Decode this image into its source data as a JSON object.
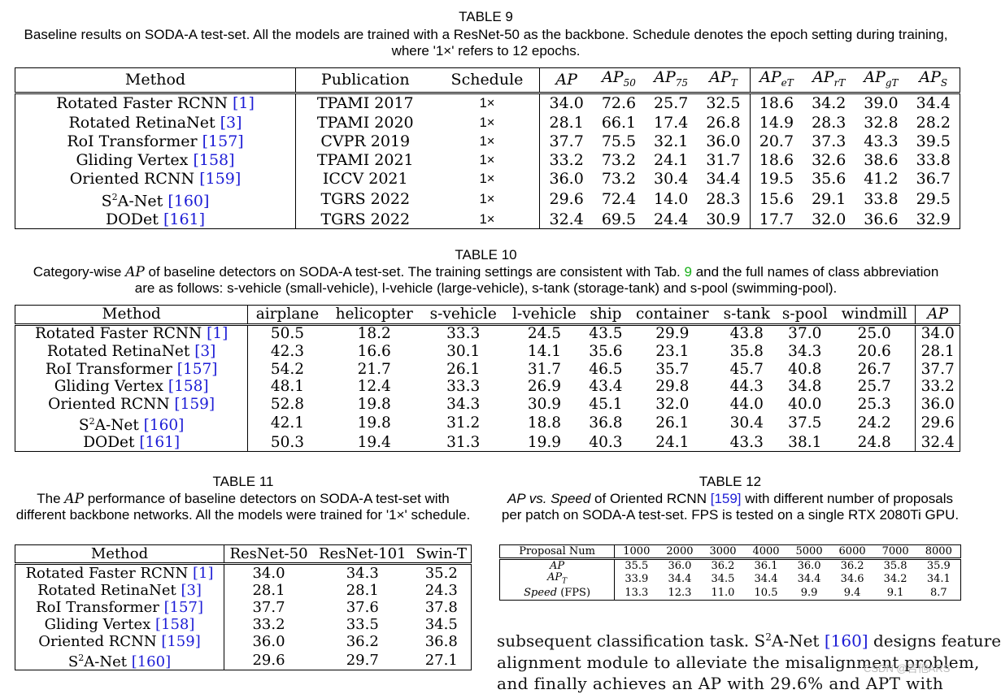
{
  "t9": {
    "label": "TABLE 9",
    "caption": "Baseline results on SODA-A test-set. All the models are trained with a ResNet-50 as the backbone. Schedule denotes the epoch setting during training, where '1×' refers to 12 epochs.",
    "headers": [
      "Method",
      "Publication",
      "Schedule",
      "AP",
      "AP50",
      "AP75",
      "APT",
      "APeT",
      "AprT",
      "APgT",
      "APS"
    ],
    "rows": [
      {
        "method": "Rotated Faster RCNN",
        "ref": "[1]",
        "pub": "TPAMI 2017",
        "sched": "1×",
        "vals": [
          "34.0",
          "72.6",
          "25.7",
          "32.5",
          "18.6",
          "34.2",
          "39.0",
          "34.4"
        ]
      },
      {
        "method": "Rotated RetinaNet",
        "ref": "[3]",
        "pub": "TPAMI 2020",
        "sched": "1×",
        "vals": [
          "28.1",
          "66.1",
          "17.4",
          "26.8",
          "14.9",
          "28.3",
          "32.8",
          "28.2"
        ]
      },
      {
        "method": "RoI Transformer",
        "ref": "[157]",
        "pub": "CVPR 2019",
        "sched": "1×",
        "vals": [
          "37.7",
          "75.5",
          "32.1",
          "36.0",
          "20.7",
          "37.3",
          "43.3",
          "39.5"
        ]
      },
      {
        "method": "Gliding Vertex",
        "ref": "[158]",
        "pub": "TPAMI 2021",
        "sched": "1×",
        "vals": [
          "33.2",
          "73.2",
          "24.1",
          "31.7",
          "18.6",
          "32.6",
          "38.6",
          "33.8"
        ]
      },
      {
        "method": "Oriented RCNN",
        "ref": "[159]",
        "pub": "ICCV 2021",
        "sched": "1×",
        "vals": [
          "36.0",
          "73.2",
          "30.4",
          "34.4",
          "19.5",
          "35.6",
          "41.2",
          "36.7"
        ]
      },
      {
        "method": "S2A-Net",
        "ref": "[160]",
        "pub": "TGRS 2022",
        "sched": "1×",
        "vals": [
          "29.6",
          "72.4",
          "14.0",
          "28.3",
          "15.6",
          "29.1",
          "33.8",
          "29.5"
        ]
      },
      {
        "method": "DODet",
        "ref": "[161]",
        "pub": "TGRS 2022",
        "sched": "1×",
        "vals": [
          "32.4",
          "69.5",
          "24.4",
          "30.9",
          "17.7",
          "32.0",
          "36.6",
          "32.9"
        ]
      }
    ]
  },
  "t10": {
    "label": "TABLE 10",
    "caption_a": "Category-wise",
    "caption_ap": "AP",
    "caption_b": "of baseline detectors on SODA-A test-set. The training settings are consistent with Tab.",
    "caption_tabref": "9",
    "caption_c": "and the full names of class abbreviation are as follows: s-vehicle (small-vehicle), l-vehicle (large-vehicle), s-tank (storage-tank) and s-pool (swimming-pool).",
    "headers": [
      "Method",
      "airplane",
      "helicopter",
      "s-vehicle",
      "l-vehicle",
      "ship",
      "container",
      "s-tank",
      "s-pool",
      "windmill",
      "AP"
    ],
    "rows": [
      {
        "method": "Rotated Faster RCNN",
        "ref": "[1]",
        "vals": [
          "50.5",
          "18.2",
          "33.3",
          "24.5",
          "43.5",
          "29.9",
          "43.8",
          "37.0",
          "25.0",
          "34.0"
        ]
      },
      {
        "method": "Rotated RetinaNet",
        "ref": "[3]",
        "vals": [
          "42.3",
          "16.6",
          "30.1",
          "14.1",
          "35.6",
          "23.1",
          "35.8",
          "34.3",
          "20.6",
          "28.1"
        ]
      },
      {
        "method": "RoI Transformer",
        "ref": "[157]",
        "vals": [
          "54.2",
          "21.7",
          "26.1",
          "31.7",
          "46.5",
          "35.7",
          "45.7",
          "40.8",
          "26.7",
          "37.7"
        ]
      },
      {
        "method": "Gliding Vertex",
        "ref": "[158]",
        "vals": [
          "48.1",
          "12.4",
          "33.3",
          "26.9",
          "43.4",
          "29.8",
          "44.3",
          "34.8",
          "25.7",
          "33.2"
        ]
      },
      {
        "method": "Oriented RCNN",
        "ref": "[159]",
        "vals": [
          "52.8",
          "19.8",
          "34.3",
          "30.9",
          "45.1",
          "32.0",
          "44.0",
          "40.0",
          "25.3",
          "36.0"
        ]
      },
      {
        "method": "S2A-Net",
        "ref": "[160]",
        "vals": [
          "42.1",
          "19.8",
          "31.2",
          "18.8",
          "36.8",
          "26.1",
          "30.4",
          "37.5",
          "24.2",
          "29.6"
        ]
      },
      {
        "method": "DODet",
        "ref": "[161]",
        "vals": [
          "50.3",
          "19.4",
          "31.3",
          "19.9",
          "40.3",
          "24.1",
          "43.3",
          "38.1",
          "24.8",
          "32.4"
        ]
      }
    ]
  },
  "t11": {
    "label": "TABLE 11",
    "caption_a": "The",
    "caption_ap": "AP",
    "caption_b": "performance of baseline detectors on SODA-A test-set with different backbone networks. All the models were trained for '1×' schedule.",
    "headers": [
      "Method",
      "ResNet-50",
      "ResNet-101",
      "Swin-T"
    ],
    "rows": [
      {
        "method": "Rotated Faster RCNN",
        "ref": "[1]",
        "vals": [
          "34.0",
          "34.3",
          "35.2"
        ]
      },
      {
        "method": "Rotated RetinaNet",
        "ref": "[3]",
        "vals": [
          "28.1",
          "28.1",
          "24.3"
        ]
      },
      {
        "method": "RoI Transformer",
        "ref": "[157]",
        "vals": [
          "37.7",
          "37.6",
          "37.8"
        ]
      },
      {
        "method": "Gliding Vertex",
        "ref": "[158]",
        "vals": [
          "33.2",
          "33.5",
          "34.5"
        ]
      },
      {
        "method": "Oriented RCNN",
        "ref": "[159]",
        "vals": [
          "36.0",
          "36.2",
          "36.8"
        ]
      },
      {
        "method": "S2A-Net",
        "ref": "[160]",
        "vals": [
          "29.6",
          "29.7",
          "27.1"
        ]
      }
    ]
  },
  "t12": {
    "label": "TABLE 12",
    "caption_a": "AP vs. Speed",
    "caption_b": "of Oriented RCNN",
    "caption_ref": "[159]",
    "caption_c": "with different number of proposals per patch on SODA-A test-set. FPS is tested on a single RTX 2080Ti GPU.",
    "header_label": "Proposal Num",
    "proposals": [
      "1000",
      "2000",
      "3000",
      "4000",
      "5000",
      "6000",
      "7000",
      "8000"
    ],
    "rows": [
      {
        "label": "AP",
        "vals": [
          "35.5",
          "36.0",
          "36.2",
          "36.1",
          "36.0",
          "36.2",
          "35.8",
          "35.9"
        ]
      },
      {
        "label": "APT",
        "vals": [
          "33.9",
          "34.4",
          "34.5",
          "34.4",
          "34.4",
          "34.6",
          "34.2",
          "34.1"
        ]
      },
      {
        "label": "Speed (FPS)",
        "vals": [
          "13.3",
          "12.3",
          "11.0",
          "10.5",
          "9.9",
          "9.4",
          "9.1",
          "8.7"
        ]
      }
    ]
  },
  "body": {
    "line1_a": "subsequent classification task. S",
    "line1_sup": "2",
    "line1_b": "A-Net",
    "line1_ref": "[160]",
    "line1_c": "designs feature",
    "line2": "alignment module to alleviate the misalignment problem,",
    "line3": "and finally achieves an AP with 29.6% and APT with"
  },
  "watermark": "CSDN @吉他ARS"
}
